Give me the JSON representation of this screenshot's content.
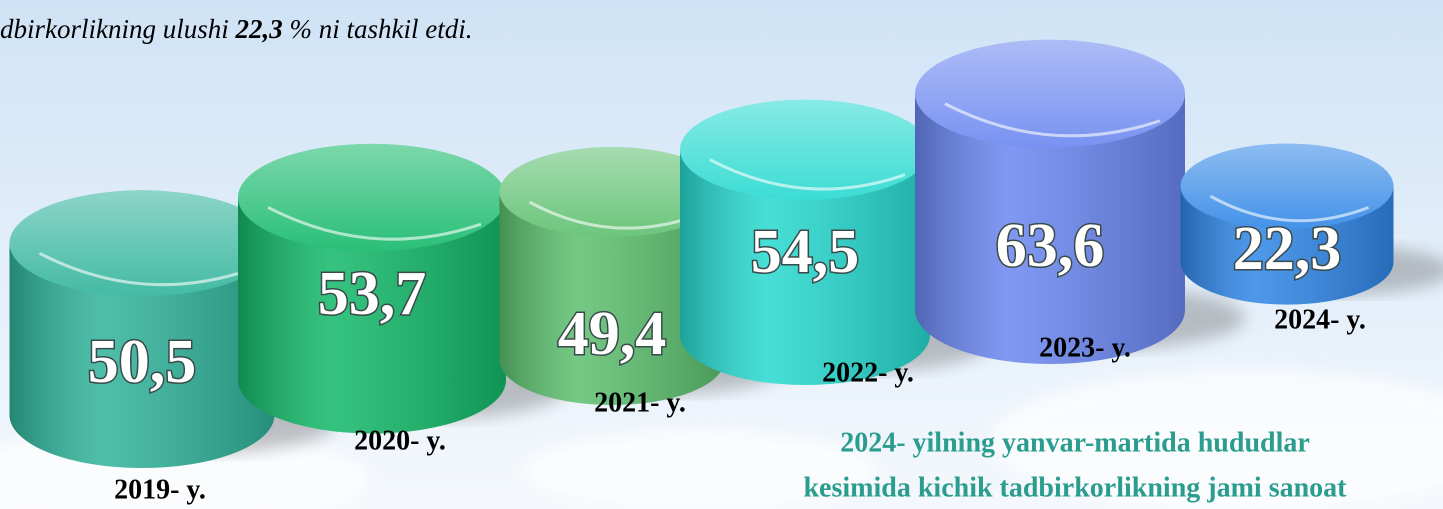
{
  "chart_data": {
    "type": "cylinder",
    "annotation": {
      "text_before": "dbirkorlikning ulushi ",
      "text_bold": "22,3",
      "text_after": " % ni tashkil etdi."
    },
    "categories": [
      "2019- y.",
      "2020- y.",
      "2021- y.",
      "2022- y.",
      "2023- y.",
      "2024- y."
    ],
    "values": [
      50.5,
      53.7,
      49.4,
      54.5,
      63.6,
      22.3
    ],
    "value_labels": [
      "50,5",
      "53,7",
      "49,4",
      "54,5",
      "63,6",
      "22,3"
    ],
    "colors": [
      "#2fb39a",
      "#12b868",
      "#5cbf6e",
      "#26d9cf",
      "#6a86f0",
      "#2f86e6"
    ],
    "caption": [
      "2024- yilning yanvar-martida hududlar",
      "kesimida kichik tadbirkorlikning jami sanoat"
    ]
  }
}
